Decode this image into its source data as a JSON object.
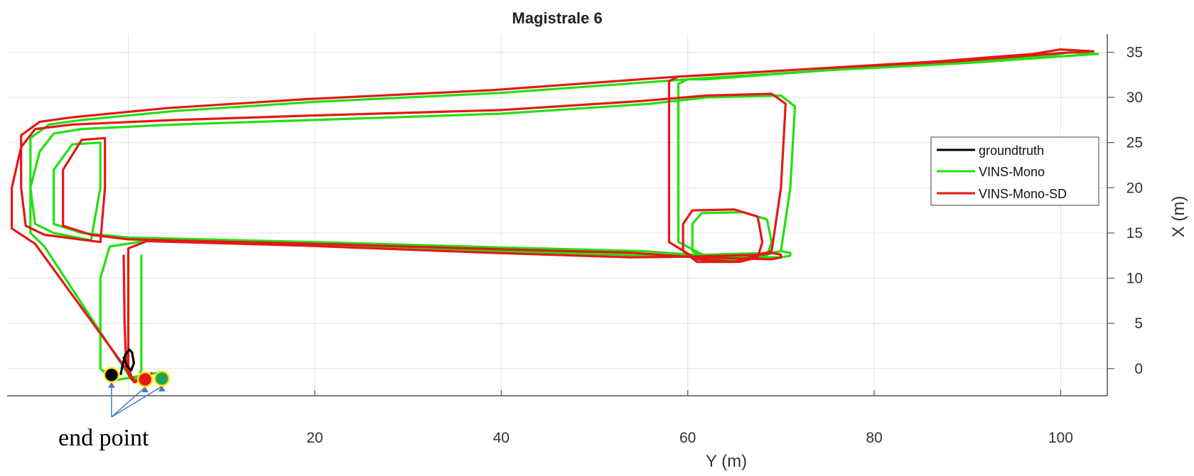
{
  "chart_data": {
    "type": "line",
    "title": "Magistrale 6",
    "xlabel": "Y (m)",
    "ylabel": "X (m)",
    "xlim": [
      -13,
      105
    ],
    "ylim": [
      -3,
      37
    ],
    "xticks": [
      20,
      40,
      60,
      80,
      100
    ],
    "yticks": [
      0,
      5,
      10,
      15,
      20,
      25,
      30,
      35
    ],
    "grid": true,
    "y_axis_location": "right",
    "legend_location": "right",
    "annotation": "end point",
    "series": [
      {
        "name": "groundtruth",
        "color": "#000000",
        "x": [
          -0.8,
          -0.6,
          -0.3,
          0.1,
          0.4,
          0.6,
          0.3,
          -0.2,
          -0.5
        ],
        "y": [
          -0.6,
          0.5,
          1.6,
          2.1,
          1.8,
          0.6,
          -0.2,
          0.4,
          1.2
        ]
      },
      {
        "name": "VINS-Mono",
        "color": "#22e010",
        "x": [
          1.4,
          1.4,
          1.4,
          1.2,
          0.4,
          -9.0,
          -10.5,
          -10.5,
          -9.5,
          -8.0,
          -5.0,
          5.0,
          20.0,
          40.0,
          56.0,
          62.0,
          70.0,
          71.5,
          71.0,
          70.0,
          66.0,
          62.0,
          60.5,
          60.5,
          61.5,
          66.0,
          68.5,
          69.0,
          68.5,
          66.5,
          62.0,
          59.0,
          59.0,
          59.0,
          60.0,
          62.0,
          75.0,
          88.0,
          98.0,
          101.0,
          104.0,
          101.0,
          90.0,
          75.0,
          60.0,
          40.0,
          20.0,
          5.0,
          -5.0,
          -8.5,
          -10.5,
          -10.5,
          -10.0,
          -8.0,
          -4.0,
          -3.0,
          -3.0,
          -3.0,
          -6.0,
          -8.0,
          -8.0,
          -5.0,
          0.0,
          20.0,
          40.0,
          55.0,
          62.0,
          70.0,
          71.0,
          71.0,
          70.0,
          69.0,
          62.0,
          55.0,
          40.0,
          20.0,
          3.0,
          -2.0,
          -3.0,
          -3.0,
          -3.0,
          -1.5,
          3.5
        ],
        "y": [
          12.5,
          5.0,
          0.0,
          -1.0,
          -1.3,
          13.5,
          15.0,
          20.0,
          24.0,
          26.0,
          26.5,
          27.0,
          27.5,
          28.2,
          29.3,
          30.0,
          30.2,
          29.0,
          20.0,
          13.0,
          12.0,
          12.0,
          13.0,
          16.0,
          17.2,
          17.3,
          16.5,
          14.0,
          12.5,
          12.1,
          12.4,
          14.0,
          22.0,
          31.5,
          32.0,
          32.0,
          33.0,
          33.8,
          34.5,
          35.0,
          34.8,
          34.6,
          33.8,
          33.0,
          32.0,
          30.5,
          29.5,
          28.5,
          27.5,
          27.0,
          25.5,
          20.0,
          16.0,
          15.0,
          14.2,
          20.0,
          24.0,
          25.0,
          24.8,
          22.0,
          16.0,
          15.0,
          14.5,
          14.0,
          13.4,
          13.0,
          12.5,
          12.3,
          12.5,
          12.8,
          13.0,
          12.8,
          12.6,
          12.5,
          13.0,
          13.8,
          14.3,
          13.5,
          10.0,
          5.0,
          0.0,
          -1.3,
          -0.4
        ]
      },
      {
        "name": "VINS-Mono-SD",
        "color": "#e41818",
        "x": [
          -0.5,
          -0.4,
          -0.2,
          0.2,
          0.8,
          -10.0,
          -12.5,
          -12.5,
          -11.5,
          -10.0,
          -6.0,
          5.0,
          20.0,
          40.0,
          55.0,
          62.0,
          69.0,
          70.5,
          70.0,
          69.0,
          65.0,
          61.0,
          59.5,
          59.5,
          60.5,
          65.0,
          67.5,
          68.0,
          67.5,
          65.5,
          61.0,
          58.0,
          58.0,
          58.0,
          59.0,
          61.0,
          74.0,
          87.0,
          97.0,
          100.0,
          103.5,
          100.0,
          89.0,
          74.0,
          59.0,
          39.0,
          19.0,
          4.0,
          -6.0,
          -9.5,
          -11.5,
          -11.5,
          -11.0,
          -9.0,
          -3.0,
          -2.5,
          -2.5,
          -2.5,
          -5.0,
          -7.0,
          -7.0,
          -4.0,
          0.0,
          20.0,
          40.0,
          54.0,
          61.0,
          69.0,
          70.0,
          70.0,
          69.0,
          68.0,
          61.0,
          54.0,
          39.0,
          19.0,
          2.0,
          0.0,
          0.0,
          0.0,
          0.0,
          0.6,
          2.5
        ],
        "y": [
          12.5,
          5.0,
          0.0,
          -1.0,
          -1.5,
          13.8,
          15.5,
          20.0,
          24.5,
          26.5,
          27.0,
          27.5,
          28.0,
          28.6,
          29.6,
          30.2,
          30.4,
          29.3,
          20.0,
          13.0,
          11.8,
          11.8,
          13.0,
          16.0,
          17.5,
          17.6,
          16.8,
          14.0,
          12.3,
          11.8,
          12.1,
          14.0,
          22.0,
          31.8,
          32.3,
          32.4,
          33.2,
          34.0,
          34.8,
          35.3,
          35.1,
          34.9,
          34.0,
          33.2,
          32.3,
          30.8,
          29.8,
          28.8,
          27.8,
          27.3,
          25.8,
          20.0,
          15.8,
          14.8,
          14.0,
          20.0,
          24.5,
          25.5,
          25.3,
          22.0,
          15.8,
          14.8,
          14.3,
          13.8,
          13.2,
          12.8,
          12.3,
          12.1,
          12.3,
          12.6,
          12.8,
          12.6,
          12.4,
          12.3,
          12.8,
          13.6,
          14.1,
          13.3,
          10.0,
          5.0,
          0.0,
          -1.5,
          -0.5
        ]
      }
    ],
    "end_points": [
      {
        "series": "groundtruth",
        "x": -1.8,
        "y": -0.7,
        "fill": "#000000"
      },
      {
        "series": "VINS-Mono-SD",
        "x": 1.8,
        "y": -1.2,
        "fill": "#e41818"
      },
      {
        "series": "VINS-Mono",
        "x": 3.6,
        "y": -1.1,
        "fill": "#1aa65a"
      }
    ]
  }
}
